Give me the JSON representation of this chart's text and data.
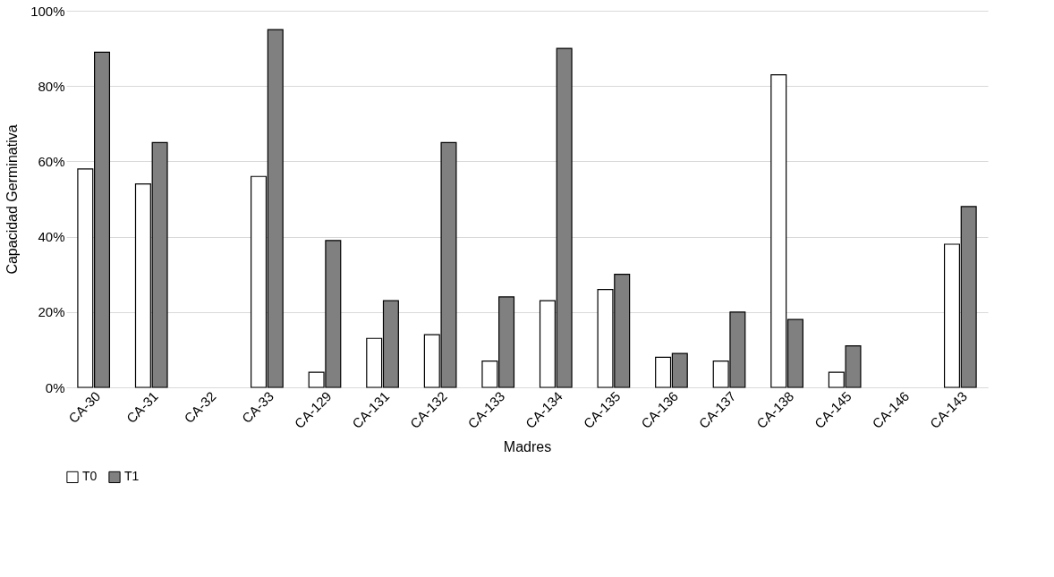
{
  "chart_data": {
    "type": "bar",
    "xlabel": "Madres",
    "ylabel": "Capacidad Germinativa",
    "categories": [
      "CA-30",
      "CA-31",
      "CA-32",
      "CA-33",
      "CA-129",
      "CA-131",
      "CA-132",
      "CA-133",
      "CA-134",
      "CA-135",
      "CA-136",
      "CA-137",
      "CA-138",
      "CA-145",
      "CA-146",
      "CA-143"
    ],
    "series": [
      {
        "name": "T0",
        "color": "#ffffff",
        "values": [
          58,
          54,
          null,
          56,
          4,
          13,
          14,
          7,
          23,
          26,
          8,
          7,
          83,
          4,
          null,
          38
        ]
      },
      {
        "name": "T1",
        "color": "#808080",
        "values": [
          89,
          65,
          null,
          95,
          39,
          23,
          65,
          24,
          90,
          30,
          9,
          20,
          18,
          11,
          null,
          48
        ]
      }
    ],
    "ylim": [
      0,
      100
    ],
    "yticks": [
      {
        "value": 0,
        "label": "0%"
      },
      {
        "value": 20,
        "label": "20%"
      },
      {
        "value": 40,
        "label": "40%"
      },
      {
        "value": 60,
        "label": "60%"
      },
      {
        "value": 80,
        "label": "80%"
      },
      {
        "value": 100,
        "label": "100%"
      }
    ],
    "grid": "y",
    "legend": "bottom"
  }
}
